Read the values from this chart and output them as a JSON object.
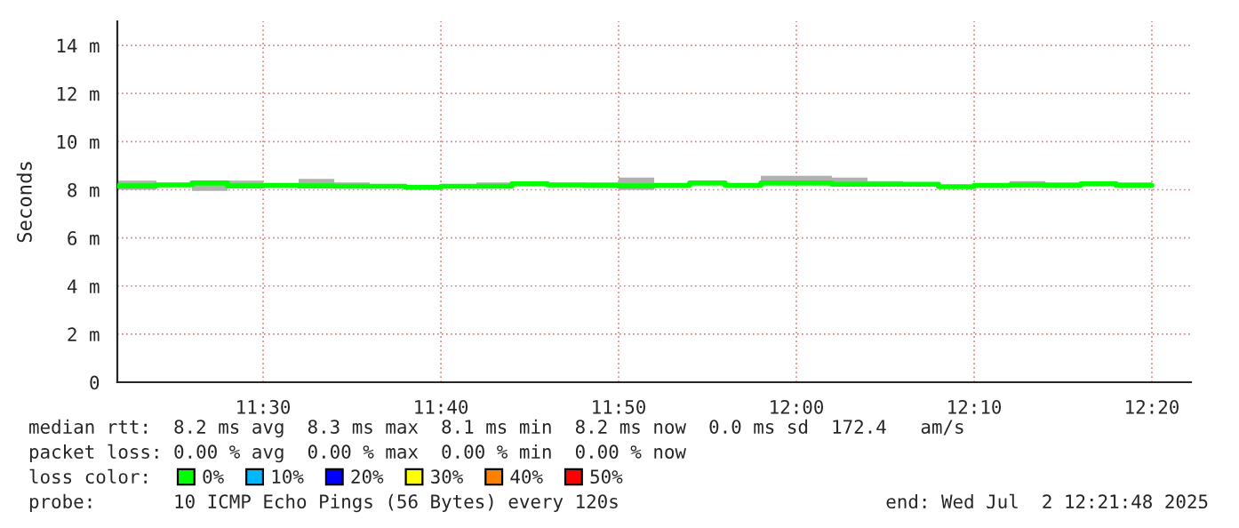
{
  "chart_data": {
    "type": "step",
    "ylabel": "Seconds",
    "x": [
      11.3633,
      11.4,
      11.4333,
      11.4667,
      11.5,
      11.5333,
      11.5667,
      11.6,
      11.6333,
      11.6667,
      11.7,
      11.7333,
      11.7667,
      11.8,
      11.8333,
      11.8667,
      11.9,
      11.9333,
      11.9667,
      12.0,
      12.0333,
      12.0667,
      12.1,
      12.1333,
      12.1667,
      12.2,
      12.2333,
      12.2667,
      12.3,
      12.3333
    ],
    "xlim": [
      11.3633,
      12.37
    ],
    "xticks": [
      {
        "value": 11.5,
        "label": "11:30"
      },
      {
        "value": 11.6667,
        "label": "11:40"
      },
      {
        "value": 11.8333,
        "label": "11:50"
      },
      {
        "value": 12.0,
        "label": "12:00"
      },
      {
        "value": 12.1667,
        "label": "12:10"
      },
      {
        "value": 12.3333,
        "label": "12:20"
      }
    ],
    "ylim": [
      0,
      15
    ],
    "yticks": [
      0,
      {
        "value": 2,
        "label": "2 m"
      },
      {
        "value": 4,
        "label": "4 m"
      },
      {
        "value": 6,
        "label": "6 m"
      },
      {
        "value": 8,
        "label": "8 m"
      },
      {
        "value": 10,
        "label": "10 m"
      },
      {
        "value": 12,
        "label": "12 m"
      },
      {
        "value": 14,
        "label": "14 m"
      }
    ],
    "grid": true,
    "legend": "bottom",
    "legend_title": "loss color:",
    "series": [
      {
        "name": "0%",
        "color": "#00ff00",
        "values": [
          8.16,
          8.2,
          8.28,
          8.16,
          8.18,
          8.16,
          8.15,
          8.15,
          8.1,
          8.15,
          8.15,
          8.25,
          8.2,
          8.18,
          8.16,
          8.18,
          8.28,
          8.18,
          8.28,
          8.28,
          8.23,
          8.23,
          8.23,
          8.13,
          8.18,
          8.2,
          8.18,
          8.25,
          8.18,
          8.18
        ],
        "upper": [
          8.38,
          8.25,
          8.3,
          8.38,
          8.22,
          8.45,
          8.3,
          8.2,
          8.15,
          8.2,
          8.3,
          8.3,
          8.25,
          8.3,
          8.51,
          8.22,
          8.32,
          8.22,
          8.58,
          8.58,
          8.51,
          8.36,
          8.28,
          8.18,
          8.22,
          8.36,
          8.3,
          8.28,
          8.3,
          8.3
        ],
        "lower": [
          8.0,
          8.15,
          7.95,
          8.1,
          8.12,
          8.1,
          8.1,
          8.1,
          8.05,
          8.1,
          8.1,
          8.2,
          8.12,
          8.12,
          7.99,
          8.1,
          8.2,
          8.1,
          8.2,
          8.2,
          8.15,
          8.15,
          8.15,
          8.05,
          8.1,
          8.1,
          8.1,
          8.2,
          8.1,
          8.1
        ]
      },
      {
        "name": "10%",
        "color": "#00b8ff",
        "values": [
          null,
          null,
          null,
          null,
          null,
          null,
          null,
          null,
          null,
          null,
          null,
          null,
          null,
          null,
          null,
          null,
          null,
          null,
          null,
          null,
          null,
          null,
          null,
          null,
          null,
          null,
          null,
          null,
          null,
          null
        ]
      },
      {
        "name": "20%",
        "color": "#0000ff",
        "values": [
          null,
          null,
          null,
          null,
          null,
          null,
          null,
          null,
          null,
          null,
          null,
          null,
          null,
          null,
          null,
          null,
          null,
          null,
          null,
          null,
          null,
          null,
          null,
          null,
          null,
          null,
          null,
          null,
          null,
          null
        ]
      },
      {
        "name": "30%",
        "color": "#ffff00",
        "values": [
          null,
          null,
          null,
          null,
          null,
          null,
          null,
          null,
          null,
          null,
          null,
          null,
          null,
          null,
          null,
          null,
          null,
          null,
          null,
          null,
          null,
          null,
          null,
          null,
          null,
          null,
          null,
          null,
          null,
          null
        ]
      },
      {
        "name": "40%",
        "color": "#ff8000",
        "values": [
          null,
          null,
          null,
          null,
          null,
          null,
          null,
          null,
          null,
          null,
          null,
          null,
          null,
          null,
          null,
          null,
          null,
          null,
          null,
          null,
          null,
          null,
          null,
          null,
          null,
          null,
          null,
          null,
          null,
          null
        ]
      },
      {
        "name": "50%",
        "color": "#ff0000",
        "values": [
          null,
          null,
          null,
          null,
          null,
          null,
          null,
          null,
          null,
          null,
          null,
          null,
          null,
          null,
          null,
          null,
          null,
          null,
          null,
          null,
          null,
          null,
          null,
          null,
          null,
          null,
          null,
          null,
          null,
          null
        ]
      }
    ],
    "annotations": [
      "median rtt:  8.2 ms avg  8.3 ms max  8.1 ms min  8.2 ms now  0.0 ms sd  172.4   am/s",
      "packet loss: 0.00 % avg  0.00 % max  0.00 % min  0.00 % now",
      "probe:       10 ICMP Echo Pings (56 Bytes) every 120s",
      "end: Wed Jul  2 12:21:48 2025"
    ]
  }
}
